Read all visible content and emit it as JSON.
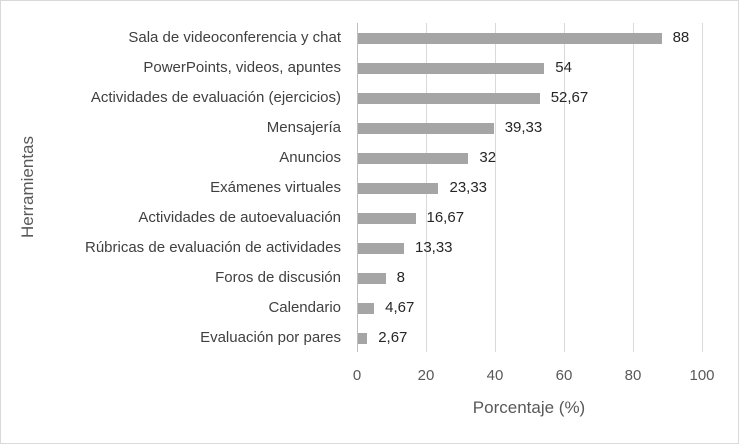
{
  "chart_data": {
    "type": "bar",
    "orientation": "horizontal",
    "title": "",
    "xlabel": "Porcentaje (%)",
    "ylabel": "Herramientas",
    "xlim": [
      0,
      100
    ],
    "xticks": [
      "0",
      "20",
      "40",
      "60",
      "80",
      "100"
    ],
    "grid": "vertical",
    "legend": "none",
    "bar_color": "#a5a5a5",
    "categories": [
      "Sala de videoconferencia y chat",
      "PowerPoints, videos, apuntes",
      "Actividades de evaluación (ejercicios)",
      "Mensajería",
      "Anuncios",
      "Exámenes virtuales",
      "Actividades de autoevaluación",
      "Rúbricas de evaluación de actividades",
      "Foros de discusión",
      "Calendario",
      "Evaluación por pares"
    ],
    "values": [
      88,
      54,
      52.67,
      39.33,
      32,
      23.33,
      16.67,
      13.33,
      8,
      4.67,
      2.67
    ],
    "value_labels": [
      "88",
      "54",
      "52,67",
      "39,33",
      "32",
      "23,33",
      "16,67",
      "13,33",
      "8",
      "4,67",
      "2,67"
    ]
  }
}
